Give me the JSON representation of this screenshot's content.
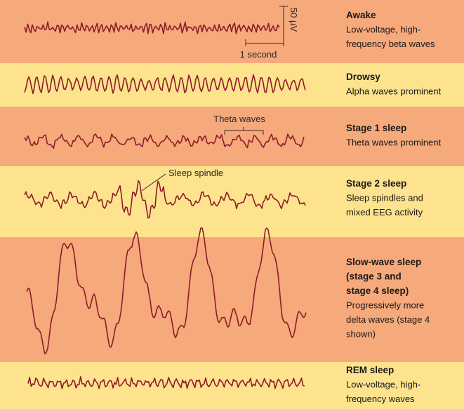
{
  "stages": [
    {
      "title": [
        "Awake"
      ],
      "description": [
        "Low-voltage, high-",
        "frequency beta waves"
      ]
    },
    {
      "title": [
        "Drowsy"
      ],
      "description": [
        "Alpha waves prominent"
      ]
    },
    {
      "title": [
        "Stage 1 sleep"
      ],
      "description": [
        "Theta waves prominent"
      ]
    },
    {
      "title": [
        "Stage 2 sleep"
      ],
      "description": [
        "Sleep spindles and",
        "mixed EEG activity"
      ]
    },
    {
      "title": [
        "Slow-wave sleep",
        "(stage 3 and",
        "stage 4 sleep)"
      ],
      "description": [
        "Progressively more",
        "delta waves (stage 4",
        "shown)"
      ]
    },
    {
      "title": [
        "REM sleep"
      ],
      "description": [
        "Low-voltage, high-",
        "frequency waves"
      ]
    }
  ],
  "annotations": {
    "voltage_scale": "50 µV",
    "time_scale": "1 second",
    "theta": "Theta waves",
    "spindle": "Sleep spindle"
  }
}
